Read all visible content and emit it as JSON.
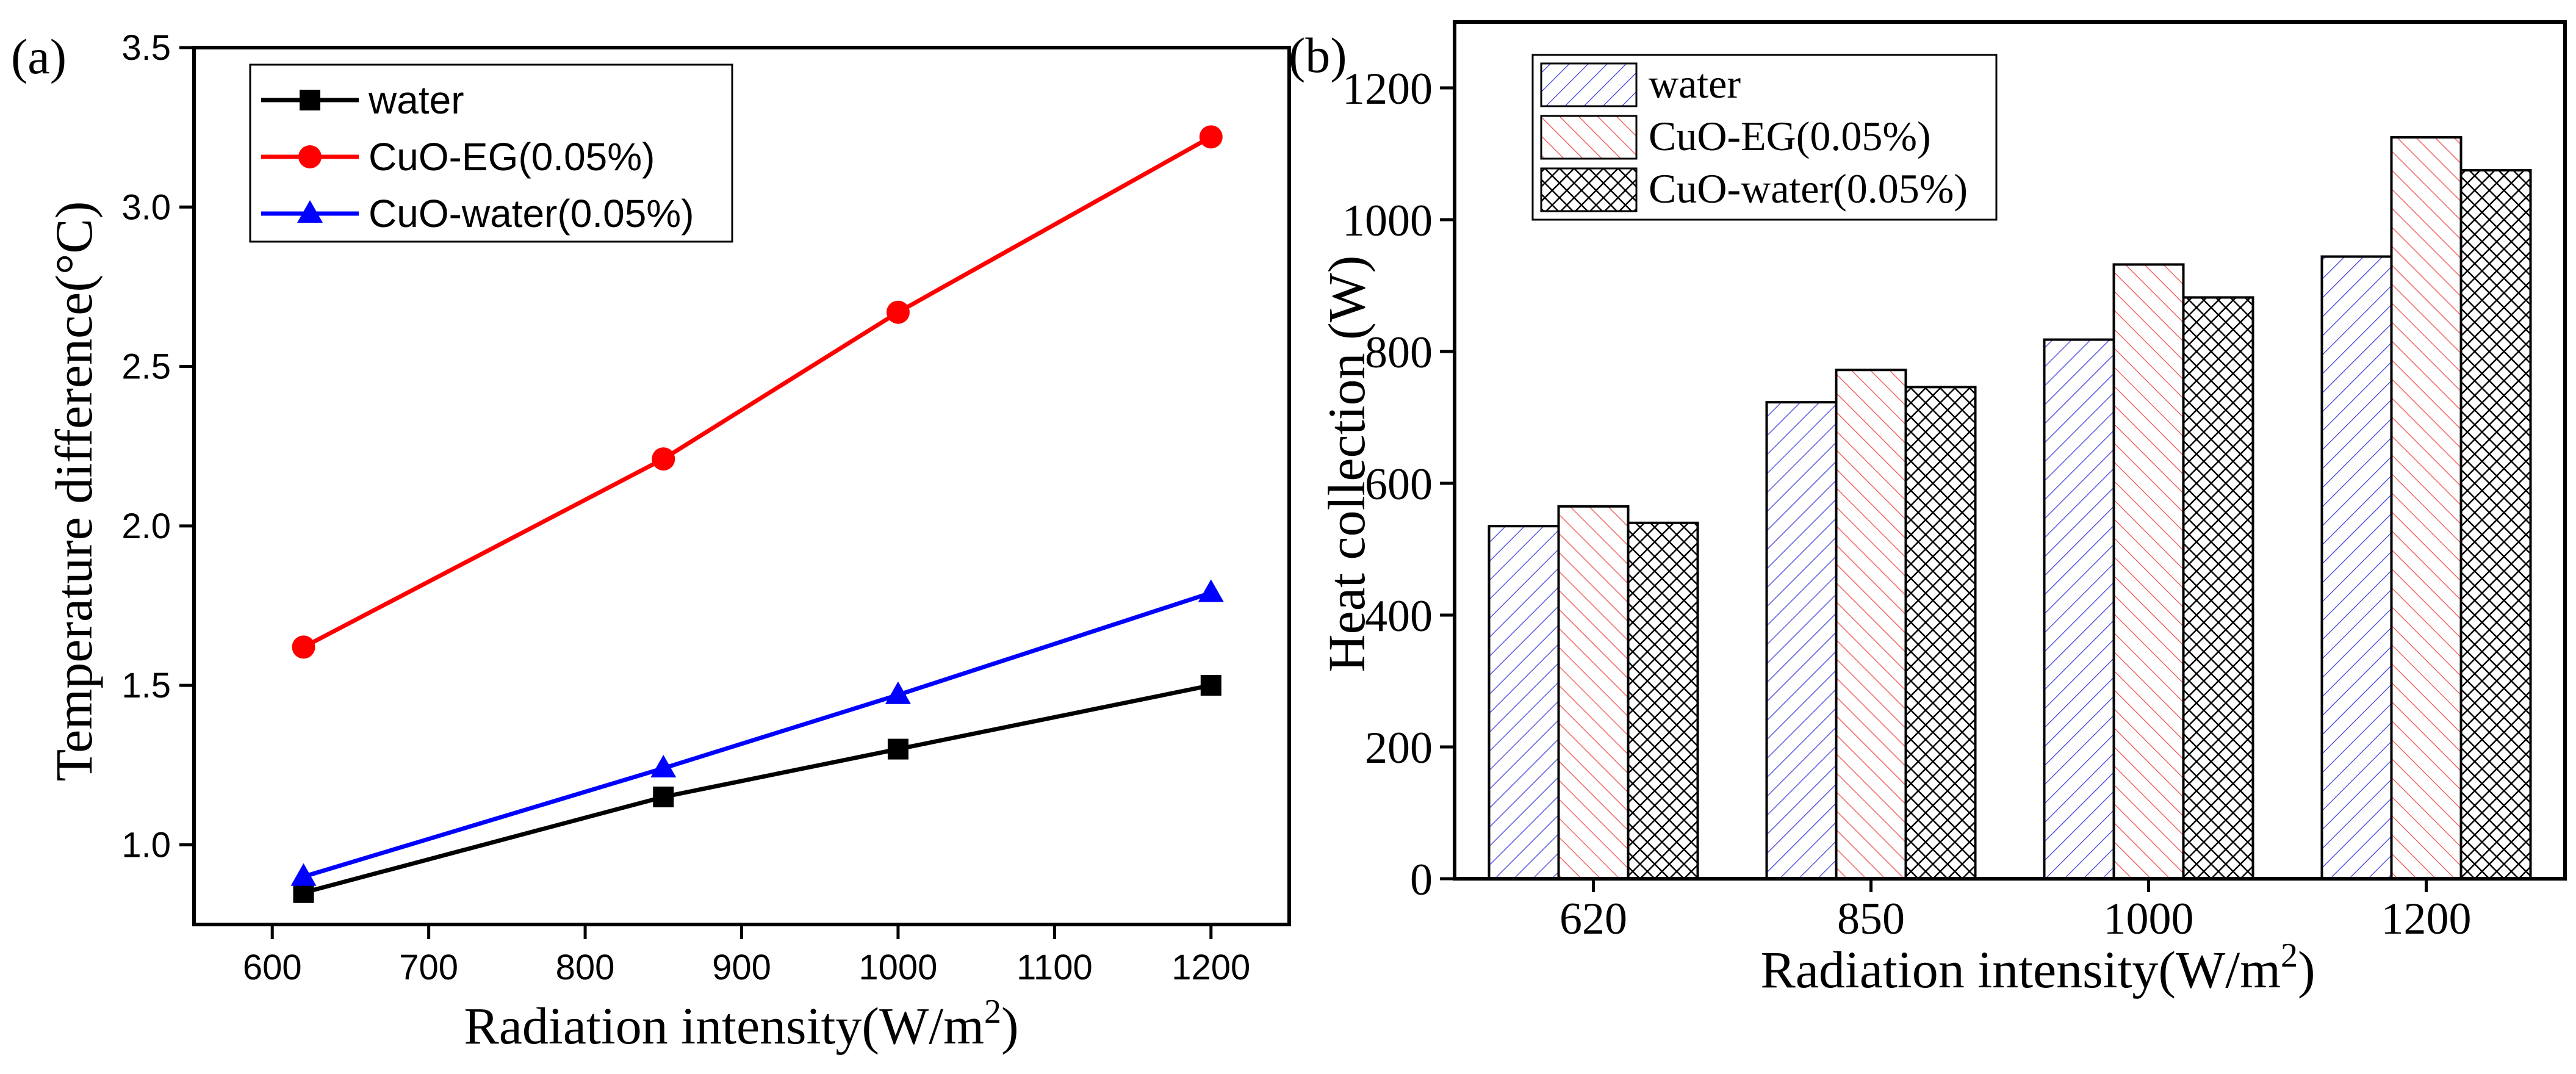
{
  "panel_a_label": "(a)",
  "panel_b_label": "(b)",
  "chart_data": [
    {
      "type": "line",
      "panel": "(a)",
      "xlabel": "Radiation intensity(W/m",
      "xlabel_sup": "2",
      "xlabel_close": ")",
      "ylabel": "Temperature  difference(°C)",
      "xlim": [
        550,
        1250
      ],
      "ylim": [
        0.75,
        3.5
      ],
      "xticks": [
        600,
        700,
        800,
        900,
        1000,
        1100,
        1200
      ],
      "yticks": [
        1.0,
        1.5,
        2.0,
        2.5,
        3.0,
        3.5
      ],
      "ytick_labels": [
        "1.0",
        "1.5",
        "2.0",
        "2.5",
        "3.0",
        "3.5"
      ],
      "x": [
        620,
        850,
        1000,
        1200
      ],
      "legend_position": "top-left",
      "series": [
        {
          "name": "water",
          "color": "#000000",
          "marker": "square",
          "values": [
            0.85,
            1.15,
            1.3,
            1.5
          ]
        },
        {
          "name": "CuO-EG(0.05%)",
          "color": "#ff0000",
          "marker": "circle",
          "values": [
            1.62,
            2.21,
            2.67,
            3.22
          ]
        },
        {
          "name": "CuO-water(0.05%)",
          "color": "#0000ff",
          "marker": "triangle",
          "values": [
            0.9,
            1.24,
            1.47,
            1.79
          ]
        }
      ]
    },
    {
      "type": "bar",
      "panel": "(b)",
      "xlabel": "Radiation intensity(W/m",
      "xlabel_sup": "2",
      "xlabel_close": ")",
      "ylabel": "Heat  collection (W)",
      "ylim": [
        0,
        1300
      ],
      "yticks": [
        0,
        200,
        400,
        600,
        800,
        1000,
        1200
      ],
      "categories": [
        "620",
        "850",
        "1000",
        "1200"
      ],
      "legend_position": "top-left",
      "series": [
        {
          "name": "water",
          "color": "#3a3adf",
          "pattern": "diag-up",
          "values": [
            535,
            723,
            818,
            944
          ]
        },
        {
          "name": "CuO-EG(0.05%)",
          "color": "#f04a4a",
          "pattern": "diag-down",
          "values": [
            565,
            772,
            932,
            1125
          ]
        },
        {
          "name": "CuO-water(0.05%)",
          "color": "#000000",
          "pattern": "crosshatch",
          "values": [
            540,
            746,
            882,
            1075
          ]
        }
      ]
    }
  ]
}
